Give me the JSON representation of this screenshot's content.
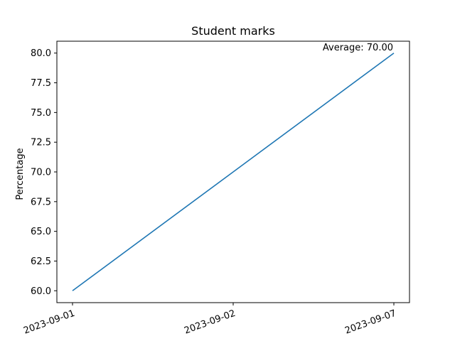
{
  "chart_data": {
    "type": "line",
    "title": "Student marks",
    "xlabel": "",
    "ylabel": "Percentage",
    "categories": [
      "2023-09-01",
      "2023-09-02",
      "2023-09-07"
    ],
    "series": [
      {
        "values": [
          60.0,
          70.0,
          80.0
        ],
        "color": "#1f77b4"
      }
    ],
    "ylim": [
      59.0,
      81.0
    ],
    "yticks": [
      "60.0",
      "62.5",
      "65.0",
      "67.5",
      "70.0",
      "72.5",
      "75.0",
      "77.5",
      "80.0"
    ],
    "annotation": "Average: 70.00",
    "grid": false,
    "legend": "none"
  }
}
